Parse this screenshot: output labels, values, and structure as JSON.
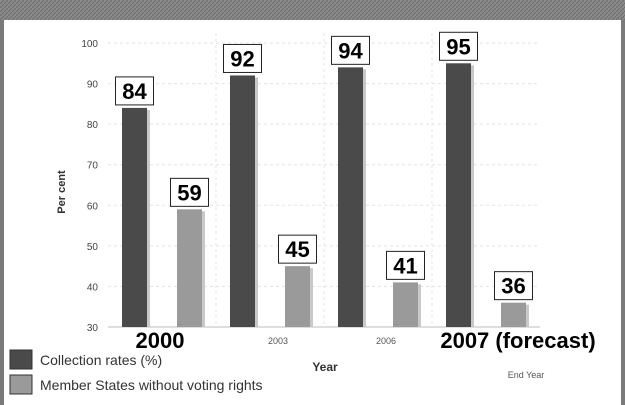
{
  "chart_data": {
    "type": "bar",
    "categories": [
      "2000",
      "2003",
      "2006",
      "2007 (forecast)"
    ],
    "category_tick_labels": [
      "",
      "2003",
      "2006",
      "End Year"
    ],
    "series": [
      {
        "name": "Collection rates (%)",
        "values": [
          84,
          92,
          94,
          95
        ],
        "color": "#4a4a4a"
      },
      {
        "name": "Member States without voting rights",
        "values": [
          59,
          45,
          41,
          36
        ],
        "color": "#9a9a9a"
      }
    ],
    "xlabel": "Year",
    "ylabel": "Per cent",
    "ylim": [
      30,
      100
    ],
    "yticks": [
      30,
      40,
      50,
      60,
      70,
      80,
      90,
      100
    ],
    "grid": true,
    "legend_position": "bottom-left"
  }
}
